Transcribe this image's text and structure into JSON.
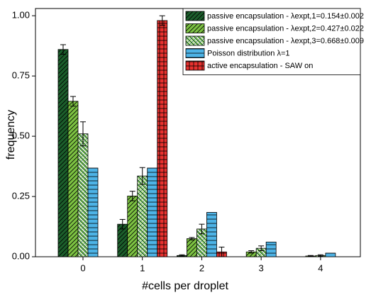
{
  "chart_data": {
    "type": "bar",
    "x_label": "#cells per droplet",
    "y_label": "frequency",
    "x": [
      0,
      1,
      2,
      3,
      4
    ],
    "xlim": [
      -0.8,
      4.67
    ],
    "xticks": [
      0,
      1,
      2,
      3,
      4
    ],
    "ylim": [
      0,
      1.03
    ],
    "yticks": [
      {
        "value": 0,
        "label": "0.00"
      },
      {
        "value": 0.25,
        "label": "0.25"
      },
      {
        "value": 0.5,
        "label": "0.50"
      },
      {
        "value": 0.75,
        "label": "0.75"
      },
      {
        "value": 1,
        "label": "1.00"
      }
    ],
    "grid": false,
    "legend": "upper right",
    "series": [
      {
        "name": "passive encapsulation - λexpt,1=0.154±0.002",
        "color": "#1b5e2b",
        "pattern": "diagonal",
        "values": [
          0.86,
          0.135,
          0.005,
          null,
          null
        ],
        "errors": [
          0.02,
          0.02,
          0.003,
          null,
          null
        ]
      },
      {
        "name": "passive encapsulation - λexpt,2=0.427±0.022",
        "color": "#7cc242",
        "pattern": "diagonal",
        "values": [
          0.645,
          0.252,
          0.075,
          0.02,
          0.003
        ],
        "errors": [
          0.02,
          0.02,
          0.005,
          0.005,
          0.002
        ]
      },
      {
        "name": "passive encapsulation - λexpt,3=0.668±0.009",
        "color": "#8fcf5a",
        "pattern": "crosshatch",
        "values": [
          0.51,
          0.335,
          0.115,
          0.035,
          0.005
        ],
        "errors": [
          0.05,
          0.035,
          0.02,
          0.01,
          0.003
        ]
      },
      {
        "name": "Poisson distribution λ=1",
        "color": "#4db3e6",
        "pattern": "horizontal",
        "values": [
          0.368,
          0.368,
          0.184,
          0.061,
          0.015
        ],
        "errors": [
          null,
          null,
          null,
          null,
          null
        ]
      },
      {
        "name": "active encapsulation - SAW on",
        "color": "#e8312f",
        "pattern": "grid",
        "values": [
          null,
          0.98,
          0.02,
          null,
          null
        ],
        "errors": [
          null,
          0.02,
          0.02,
          null,
          null
        ]
      }
    ]
  }
}
